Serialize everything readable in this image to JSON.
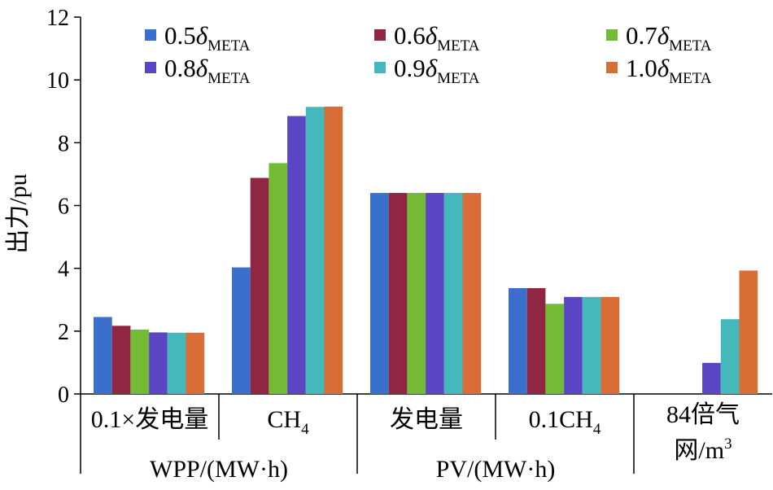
{
  "chart_data": {
    "type": "bar",
    "ylabel": "出力/pu",
    "ylim": [
      0,
      12
    ],
    "yticks": [
      0,
      2,
      4,
      6,
      8,
      10,
      12
    ],
    "grid": false,
    "legend_position": "top",
    "categories": [
      {
        "label": "0.1×发电量",
        "sub": ""
      },
      {
        "label": "CH",
        "sub": "4"
      },
      {
        "label": "发电量",
        "sub": ""
      },
      {
        "label": "0.1CH",
        "sub": "4"
      },
      {
        "label": "84倍气网/m",
        "sup": "3"
      }
    ],
    "groups": [
      {
        "label": "WPP/(MW·h)",
        "categories": [
          0,
          1
        ]
      },
      {
        "label": "PV/(MW·h)",
        "categories": [
          2,
          3
        ]
      }
    ],
    "series": [
      {
        "name": "0.5δMETA",
        "color": "#3a6fcd",
        "values": [
          2.45,
          4.03,
          6.4,
          3.37,
          0
        ]
      },
      {
        "name": "0.6δMETA",
        "color": "#8f2742",
        "values": [
          2.17,
          6.88,
          6.4,
          3.37,
          0
        ]
      },
      {
        "name": "0.7δMETA",
        "color": "#74bb35",
        "values": [
          2.05,
          7.35,
          6.4,
          2.87,
          0
        ]
      },
      {
        "name": "0.8δMETA",
        "color": "#5a46c2",
        "values": [
          1.96,
          8.85,
          6.4,
          3.09,
          0.99
        ]
      },
      {
        "name": "0.9δMETA",
        "color": "#44b8bb",
        "values": [
          1.95,
          9.14,
          6.4,
          3.09,
          2.38
        ]
      },
      {
        "name": "1.0δMETA",
        "color": "#d86e35",
        "values": [
          1.95,
          9.15,
          6.4,
          3.09,
          3.93
        ]
      }
    ]
  }
}
